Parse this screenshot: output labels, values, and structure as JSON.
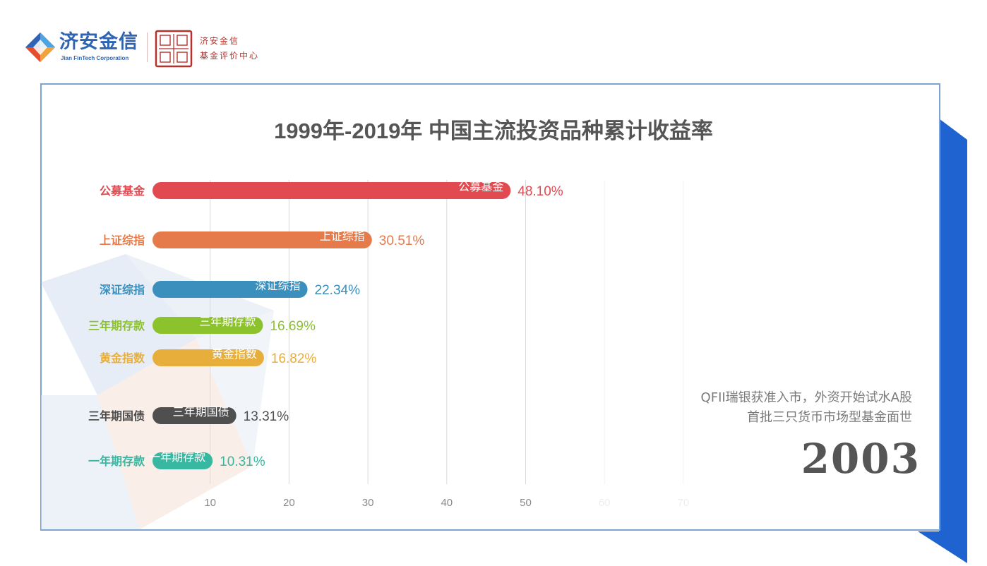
{
  "brand": {
    "name": "济安金信",
    "subtitle": "Jian FinTech Corporation",
    "seal_text_line1": "济安金信",
    "seal_text_line2": "基金评价中心",
    "colors": {
      "brand_blue": "#2f64b4",
      "seal_red": "#b5322c",
      "card_border": "#7ea5d2",
      "shadow_blue": "#1f63d1"
    }
  },
  "annotation": {
    "lines": [
      "QFII瑞银获准入市，外资开始试水A股",
      "首批三只货币市场型基金面世"
    ],
    "year": "2003"
  },
  "chart_data": {
    "type": "bar",
    "orientation": "horizontal",
    "title": "1999年-2019年 中国主流投资品种累计收益率",
    "categories": [
      "公募基金",
      "上证综指",
      "深证综指",
      "三年期存款",
      "黄金指数",
      "三年期国债",
      "一年期存款"
    ],
    "values": [
      48.1,
      30.51,
      22.34,
      16.69,
      16.82,
      13.31,
      10.31
    ],
    "value_labels": [
      "48.10%",
      "30.51%",
      "22.34%",
      "16.69%",
      "16.82%",
      "13.31%",
      "10.31%"
    ],
    "colors": [
      "#e24a52",
      "#e57b4b",
      "#3a8fbd",
      "#8cc22c",
      "#e8ae3c",
      "#4f4f4f",
      "#38b8a0"
    ],
    "x_ticks": [
      10,
      20,
      30,
      40,
      50,
      60,
      70
    ],
    "xlim": [
      0,
      70
    ],
    "grid": true,
    "legend": "none"
  }
}
